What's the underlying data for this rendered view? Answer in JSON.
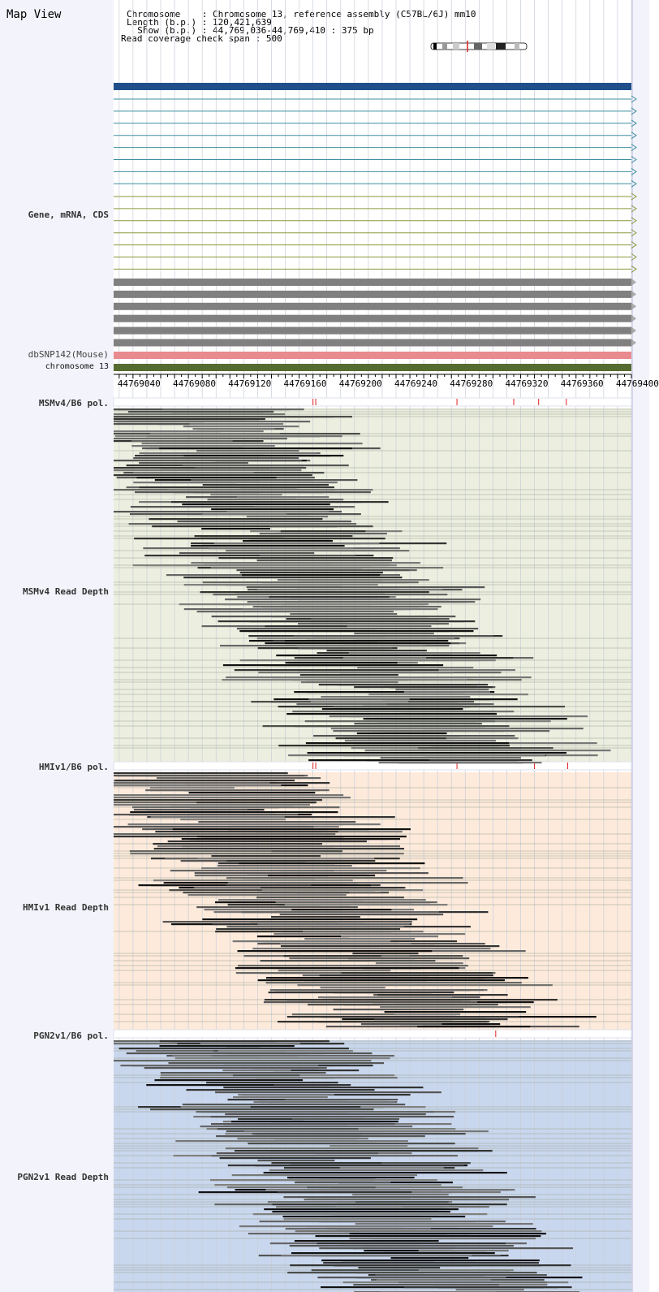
{
  "title": "Map View",
  "info": {
    "chromosome_key": "Chromosome",
    "chromosome_value": "Chromosome 13, reference assembly (C57BL/6J) mm10",
    "length_key": "Length (b.p.)",
    "length_value": "120,421,639",
    "show_key": "Show (b.p.)",
    "show_value": "44,769,036-44,769,410 : 375 bp",
    "coverage_key": "Read coverage check span",
    "coverage_value": "500"
  },
  "track_labels": {
    "gene": "Gene, mRNA, CDS",
    "snp": "dbSNP142(Mouse)",
    "chromosome": "chromosome 13",
    "msm_pol": "MSMv4/B6 pol.",
    "msm_depth": "MSMv4 Read Depth",
    "hmi_pol": "HMIv1/B6 pol.",
    "hmi_depth": "HMIv1 Read Depth",
    "pgn_pol": "PGN2v1/B6 pol.",
    "pgn_depth": "PGN2v1 Read Depth"
  },
  "ruler": {
    "start": 44769036,
    "end": 44769410,
    "tick_labels": [
      "44769040",
      "44769080",
      "44769120",
      "44769160",
      "44769200",
      "44769240",
      "44769280",
      "44769320",
      "44769360",
      "44769400"
    ]
  },
  "polymorphisms": {
    "msm": [
      44769180,
      44769182,
      44769284,
      44769325,
      44769343,
      44769363
    ],
    "hmi": [
      44769180,
      44769182,
      44769284,
      44769340,
      44769364
    ],
    "pgn": [
      44769312
    ]
  },
  "colors": {
    "gene_main": "#1f4f8b",
    "mrna": "#3d8fa0",
    "cds": "#8a9a3a",
    "gray_transcript": "#808080",
    "snp": "#e88a8e",
    "chromosome": "#556b2f",
    "msm_bg": "#ecefdf",
    "hmi_bg": "#fdeadb",
    "pgn_bg": "#c9d7ee",
    "pol_mark": "#e02020",
    "ideogram_band": "#e02020"
  }
}
